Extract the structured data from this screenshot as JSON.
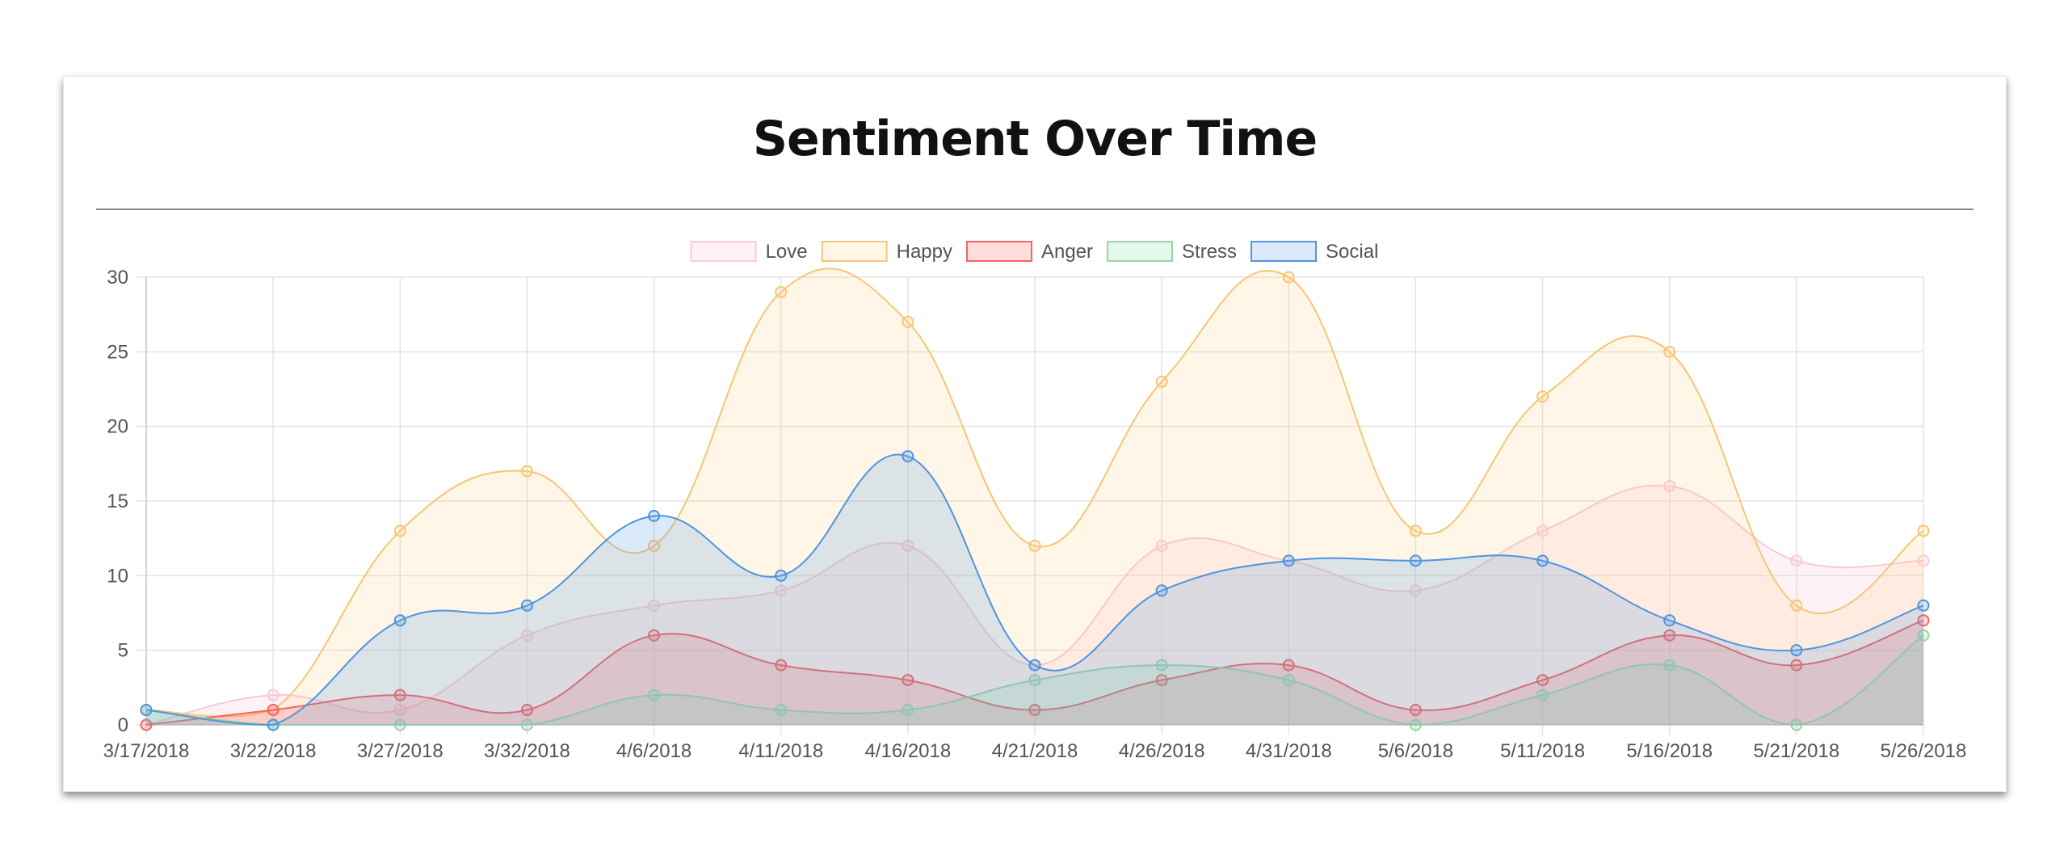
{
  "card": {
    "title": "Sentiment Over Time"
  },
  "chart_data": {
    "type": "area",
    "title": "Sentiment Over Time",
    "x_tick_labels": [
      "3/17/2018",
      "3/22/2018",
      "3/27/2018",
      "3/32/2018",
      "4/6/2018",
      "4/11/2018",
      "4/16/2018",
      "4/21/2018",
      "4/26/2018",
      "4/31/2018",
      "5/6/2018",
      "5/11/2018",
      "5/16/2018",
      "5/21/2018",
      "5/26/2018"
    ],
    "ylim": [
      0,
      30
    ],
    "y_ticks": [
      0,
      5,
      10,
      15,
      20,
      25,
      30
    ],
    "grid": true,
    "legend_position": "top-center",
    "series": [
      {
        "name": "Love",
        "color": "#f9c9d6",
        "fill": "rgba(255,205,220,0.25)",
        "values": [
          0,
          2,
          1,
          6,
          8,
          9,
          12,
          4,
          12,
          11,
          9,
          13,
          16,
          11,
          11
        ]
      },
      {
        "name": "Happy",
        "color": "#f7c674",
        "fill": "rgba(255,206,120,0.18)",
        "values": [
          1,
          1,
          13,
          17,
          12,
          29,
          27,
          12,
          23,
          30,
          13,
          22,
          25,
          8,
          13
        ]
      },
      {
        "name": "Anger",
        "color": "#f0655f",
        "fill": "rgba(255,99,99,0.22)",
        "values": [
          0,
          1,
          2,
          1,
          6,
          4,
          3,
          1,
          3,
          4,
          1,
          3,
          6,
          4,
          7
        ]
      },
      {
        "name": "Stress",
        "color": "#9ed0a6",
        "fill": "rgba(100,220,150,0.18)",
        "values": [
          1,
          0,
          0,
          0,
          2,
          1,
          1,
          3,
          4,
          3,
          0,
          2,
          4,
          0,
          6
        ]
      },
      {
        "name": "Social",
        "color": "#4e95e0",
        "fill": "rgba(90,160,230,0.22)",
        "values": [
          1,
          0,
          7,
          8,
          14,
          10,
          18,
          4,
          9,
          11,
          11,
          11,
          7,
          5,
          8
        ]
      }
    ]
  }
}
